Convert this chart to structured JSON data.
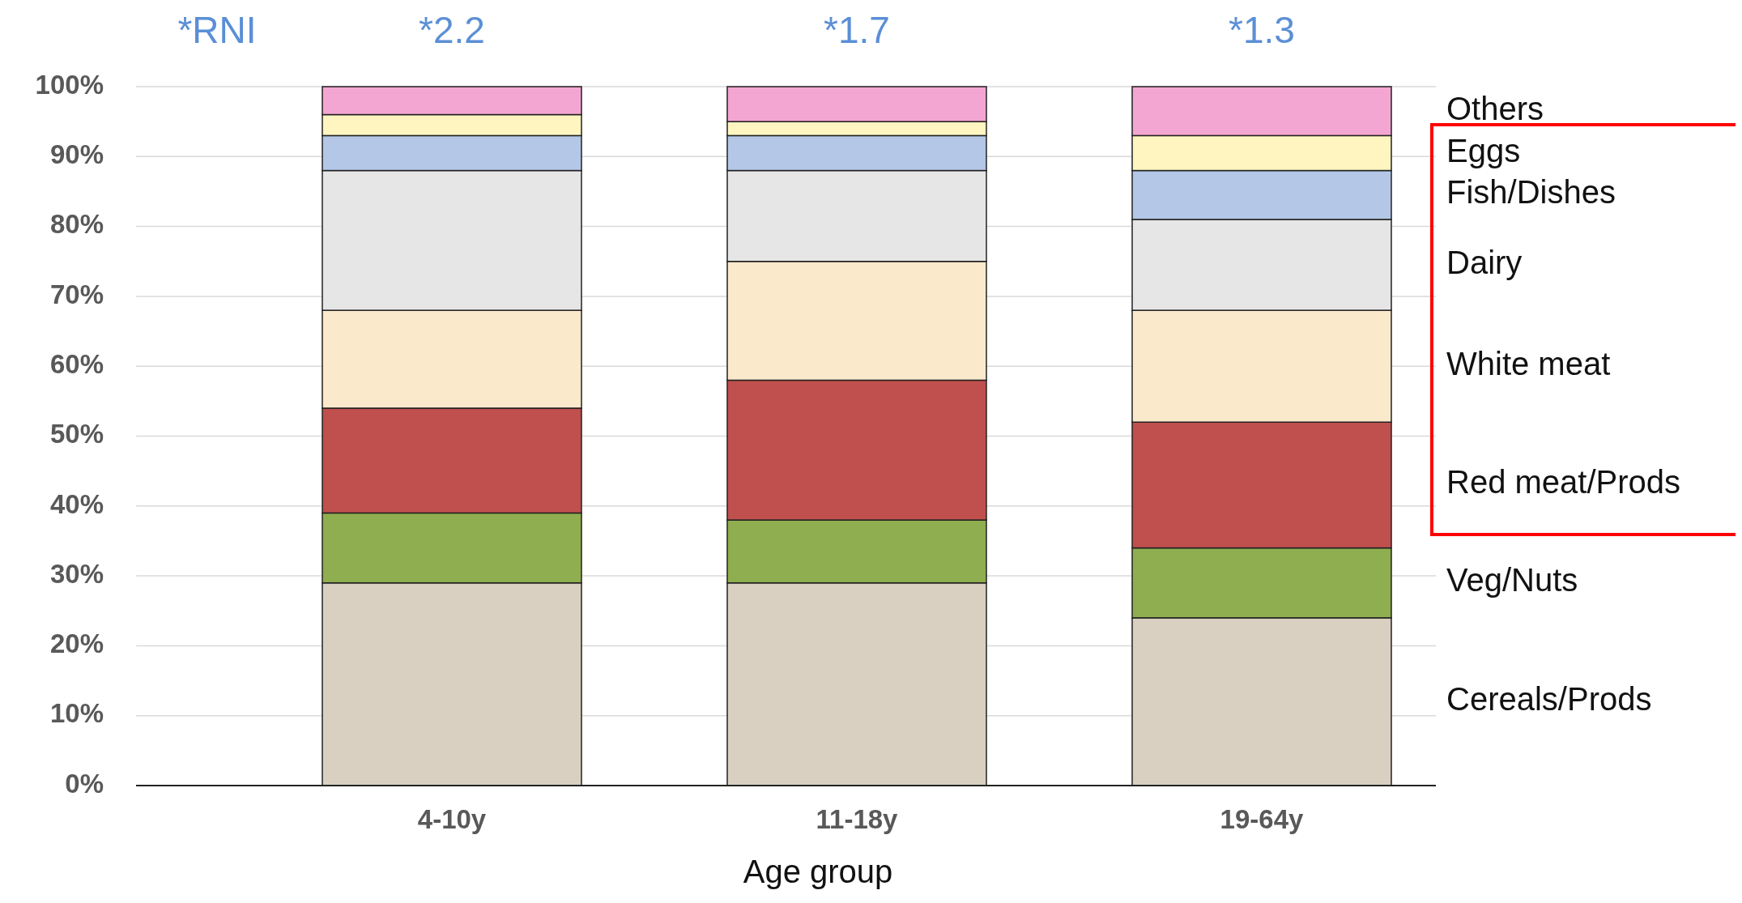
{
  "chart_data": {
    "type": "bar",
    "stacked": true,
    "xlabel": "Age group",
    "categories": [
      "4-10y",
      "11-18y",
      "19-64y"
    ],
    "series": [
      {
        "name": "Cereals/Prods",
        "color": "#d9d0c1",
        "values": [
          29,
          29,
          24
        ]
      },
      {
        "name": "Veg/Nuts",
        "color": "#8fae4f",
        "values": [
          10,
          9,
          10
        ]
      },
      {
        "name": "Red meat/Prods",
        "color": "#c0504d",
        "values": [
          15,
          20,
          18
        ]
      },
      {
        "name": "White meat",
        "color": "#fbe9cc",
        "values": [
          14,
          17,
          16
        ]
      },
      {
        "name": "Dairy",
        "color": "#e6e6e6",
        "values": [
          20,
          13,
          13
        ]
      },
      {
        "name": "Fish/Dishes",
        "color": "#b4c7e7",
        "values": [
          5,
          5,
          7
        ]
      },
      {
        "name": "Eggs",
        "color": "#fff5c0",
        "values": [
          3,
          2,
          5
        ]
      },
      {
        "name": "Others",
        "color": "#f4a6d2",
        "values": [
          4,
          5,
          7
        ]
      }
    ],
    "ylim": [
      0,
      100
    ],
    "yticks": [
      {
        "value": 0,
        "label": "0%"
      },
      {
        "value": 10,
        "label": "10%"
      },
      {
        "value": 20,
        "label": "20%"
      },
      {
        "value": 30,
        "label": "30%"
      },
      {
        "value": 40,
        "label": "40%"
      },
      {
        "value": 50,
        "label": "50%"
      },
      {
        "value": 60,
        "label": "60%"
      },
      {
        "value": 70,
        "label": "70%"
      },
      {
        "value": 80,
        "label": "80%"
      },
      {
        "value": 90,
        "label": "90%"
      },
      {
        "value": 100,
        "label": "100%"
      }
    ],
    "grid": "y",
    "legend": false,
    "annotations": [
      "*RNI",
      "*2.2",
      "*1.7",
      "*1.3"
    ]
  }
}
